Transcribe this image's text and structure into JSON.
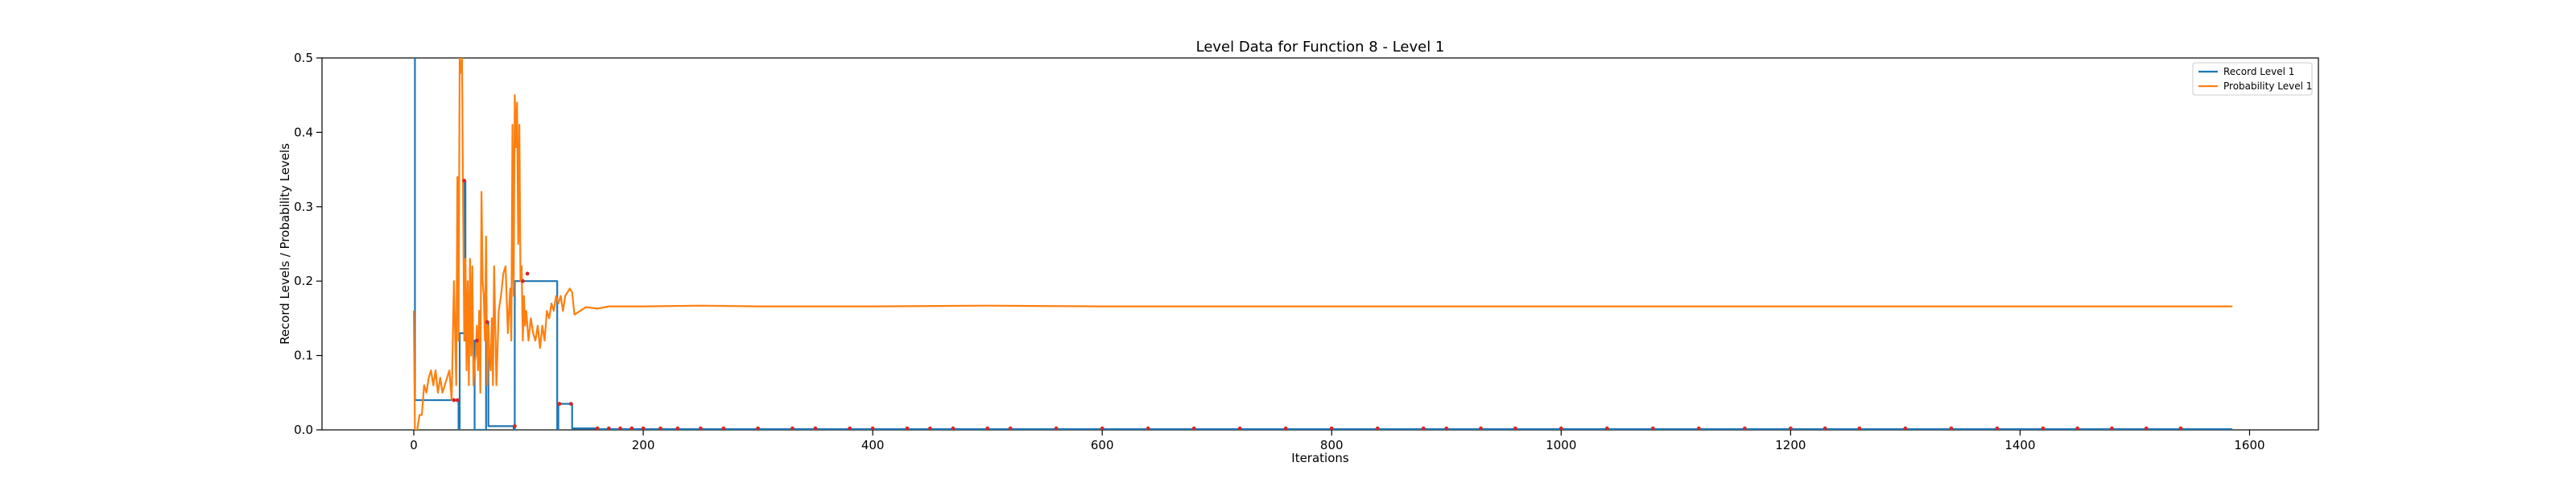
{
  "chart_data": {
    "type": "line",
    "title": "Level Data for Function 8 - Level 1",
    "xlabel": "Iterations",
    "ylabel": "Record Levels / Probability Levels",
    "xlim": [
      -80,
      1660
    ],
    "ylim": [
      0,
      0.5
    ],
    "xticks": [
      0,
      200,
      400,
      600,
      800,
      1000,
      1200,
      1400,
      1600
    ],
    "yticks": [
      0.0,
      0.1,
      0.2,
      0.3,
      0.4,
      0.5
    ],
    "grid": false,
    "legend_position": "top-right",
    "series": [
      {
        "name": "Record Level 1",
        "color": "#1f77b4",
        "step": true,
        "x": [
          0,
          1,
          2,
          38,
          39,
          40,
          43,
          44,
          45,
          52,
          53,
          60,
          63,
          64,
          65,
          86,
          87,
          88,
          125,
          126,
          127,
          137,
          138,
          140,
          160,
          200,
          400,
          600,
          800,
          1000,
          1200,
          1400,
          1585
        ],
        "y": [
          0.5,
          0.04,
          0.04,
          0.04,
          0.0,
          0.13,
          0.13,
          0.335,
          0.12,
          0.12,
          0.0,
          0.0,
          0.145,
          0.145,
          0.005,
          0.005,
          0.0,
          0.2,
          0.0,
          0.035,
          0.035,
          0.035,
          0.002,
          0.002,
          0.001,
          0.001,
          0.001,
          0.001,
          0.001,
          0.001,
          0.001,
          0.001,
          0.001
        ]
      },
      {
        "name": "Probability Level 1",
        "color": "#ff7f0e",
        "step": false,
        "x": [
          0,
          1,
          3,
          5,
          7,
          9,
          11,
          13,
          15,
          17,
          19,
          21,
          23,
          25,
          27,
          29,
          31,
          33,
          35,
          37,
          38,
          39,
          40,
          41,
          42,
          43,
          44,
          45,
          46,
          47,
          48,
          49,
          50,
          51,
          52,
          53,
          54,
          55,
          56,
          57,
          58,
          59,
          60,
          61,
          62,
          63,
          64,
          65,
          66,
          67,
          68,
          69,
          70,
          72,
          74,
          76,
          78,
          80,
          82,
          84,
          85,
          86,
          87,
          88,
          89,
          90,
          91,
          92,
          93,
          94,
          95,
          96,
          97,
          98,
          100,
          102,
          104,
          106,
          108,
          110,
          112,
          114,
          116,
          118,
          120,
          122,
          124,
          126,
          128,
          130,
          132,
          134,
          136,
          138,
          140,
          145,
          150,
          160,
          170,
          180,
          200,
          250,
          300,
          400,
          500,
          600,
          800,
          1000,
          1200,
          1400,
          1585
        ],
        "y": [
          0.16,
          0.0,
          0.0,
          0.02,
          0.02,
          0.06,
          0.05,
          0.07,
          0.08,
          0.06,
          0.08,
          0.05,
          0.07,
          0.05,
          0.06,
          0.07,
          0.08,
          0.04,
          0.2,
          0.06,
          0.34,
          0.12,
          0.5,
          0.48,
          0.5,
          0.3,
          0.12,
          0.23,
          0.08,
          0.2,
          0.06,
          0.23,
          0.1,
          0.22,
          0.06,
          0.09,
          0.1,
          0.14,
          0.08,
          0.16,
          0.05,
          0.32,
          0.2,
          0.18,
          0.12,
          0.26,
          0.06,
          0.14,
          0.1,
          0.08,
          0.15,
          0.06,
          0.22,
          0.06,
          0.16,
          0.18,
          0.21,
          0.22,
          0.13,
          0.19,
          0.12,
          0.41,
          0.18,
          0.45,
          0.38,
          0.44,
          0.25,
          0.41,
          0.2,
          0.22,
          0.12,
          0.18,
          0.14,
          0.16,
          0.12,
          0.15,
          0.13,
          0.12,
          0.14,
          0.11,
          0.14,
          0.12,
          0.16,
          0.15,
          0.17,
          0.16,
          0.18,
          0.17,
          0.18,
          0.16,
          0.18,
          0.185,
          0.19,
          0.185,
          0.155,
          0.16,
          0.165,
          0.163,
          0.166,
          0.166,
          0.166,
          0.167,
          0.166,
          0.166,
          0.167,
          0.166,
          0.166,
          0.166,
          0.166,
          0.166,
          0.166
        ]
      }
    ],
    "markers": {
      "color": "#d62728",
      "x": [
        35,
        38,
        44,
        55,
        64,
        88,
        95,
        99,
        127,
        137,
        160,
        170,
        180,
        190,
        200,
        215,
        230,
        250,
        270,
        300,
        330,
        350,
        380,
        400,
        430,
        450,
        470,
        500,
        520,
        560,
        600,
        640,
        680,
        720,
        760,
        800,
        840,
        880,
        900,
        930,
        960,
        1000,
        1040,
        1080,
        1120,
        1160,
        1200,
        1230,
        1260,
        1300,
        1340,
        1380,
        1420,
        1450,
        1480,
        1510,
        1540
      ],
      "y": [
        0.04,
        0.04,
        0.335,
        0.12,
        0.145,
        0.005,
        0.2,
        0.21,
        0.035,
        0.035,
        0.002,
        0.002,
        0.002,
        0.002,
        0.002,
        0.002,
        0.002,
        0.002,
        0.002,
        0.002,
        0.002,
        0.002,
        0.002,
        0.002,
        0.002,
        0.002,
        0.002,
        0.002,
        0.002,
        0.002,
        0.002,
        0.002,
        0.002,
        0.002,
        0.002,
        0.002,
        0.002,
        0.002,
        0.002,
        0.002,
        0.002,
        0.002,
        0.002,
        0.002,
        0.002,
        0.002,
        0.002,
        0.002,
        0.002,
        0.002,
        0.002,
        0.002,
        0.002,
        0.002,
        0.002,
        0.002,
        0.002
      ]
    }
  }
}
